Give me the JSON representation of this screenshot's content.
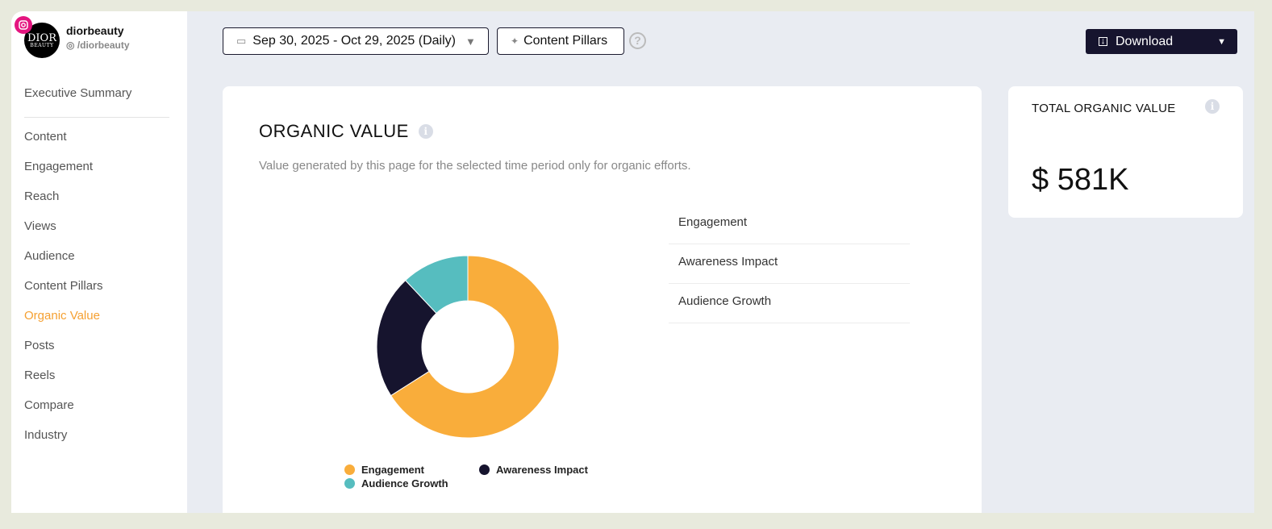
{
  "profile": {
    "name": "diorbeauty",
    "handle": "/diorbeauty",
    "logo_text": [
      "DIOR",
      "BEAUTY"
    ]
  },
  "sidebar": {
    "items": [
      {
        "label": "Executive Summary"
      },
      {
        "label": "Content"
      },
      {
        "label": "Engagement"
      },
      {
        "label": "Reach"
      },
      {
        "label": "Views"
      },
      {
        "label": "Audience"
      },
      {
        "label": "Content Pillars"
      },
      {
        "label": "Organic Value",
        "active": true
      },
      {
        "label": "Posts"
      },
      {
        "label": "Reels"
      },
      {
        "label": "Compare"
      },
      {
        "label": "Industry"
      }
    ]
  },
  "toolbar": {
    "date_range": "Sep 30, 2025 - Oct 29, 2025 (Daily)",
    "content_pillars": "Content Pillars",
    "download": "Download"
  },
  "organic": {
    "title": "ORGANIC VALUE",
    "subtitle": "Value generated by this page for the selected time period only for organic efforts.",
    "list": [
      "Engagement",
      "Awareness Impact",
      "Audience Growth"
    ]
  },
  "total": {
    "title": "TOTAL ORGANIC VALUE",
    "value": "$ 581K"
  },
  "colors": {
    "engagement": "#f9ad3b",
    "awareness": "#16142e",
    "audience": "#56bdbf",
    "accent": "#f5a031"
  },
  "chart_data": {
    "type": "pie",
    "donut": true,
    "unit": "percent (estimated)",
    "categories": [
      "Engagement",
      "Awareness Impact",
      "Audience Growth"
    ],
    "values": [
      66,
      22,
      12
    ]
  }
}
